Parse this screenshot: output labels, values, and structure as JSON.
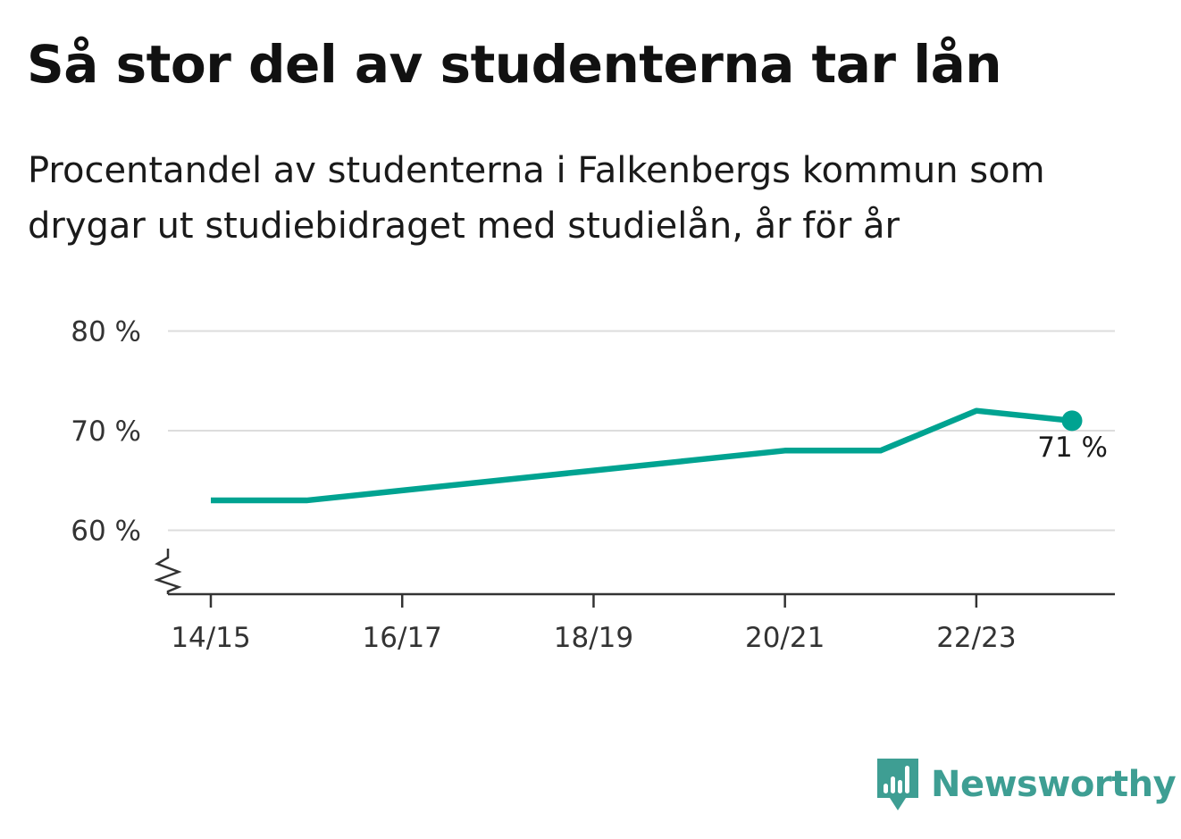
{
  "title": "Så stor del av studenterna tar lån",
  "subtitle_lines": [
    "Procentandel av studenterna i Falkenbergs kommun som",
    "drygar ut studiebidraget med studielån, år för år"
  ],
  "brand": {
    "name": "Newsworthy",
    "icon": "bar-chart-speech-bubble-icon",
    "color": "#3e9e93"
  },
  "chart_data": {
    "type": "line",
    "x": [
      "14/15",
      "15/16",
      "16/17",
      "17/18",
      "18/19",
      "19/20",
      "20/21",
      "21/22",
      "22/23",
      "23/24"
    ],
    "series": [
      {
        "values": [
          63,
          63,
          64,
          65,
          66,
          67,
          68,
          68,
          72,
          71
        ]
      }
    ],
    "xticks": [
      "14/15",
      "16/17",
      "18/19",
      "20/21",
      "22/23"
    ],
    "yticks": [
      60,
      70,
      80
    ],
    "ytick_labels": [
      "60 %",
      "70 %",
      "80 %"
    ],
    "ylim": [
      53.5,
      80
    ],
    "axis_break": true,
    "grid": true,
    "end_label": "71 %",
    "line_color": "#00a391",
    "grid_color": "#dddddd",
    "axis_color": "#333333"
  }
}
